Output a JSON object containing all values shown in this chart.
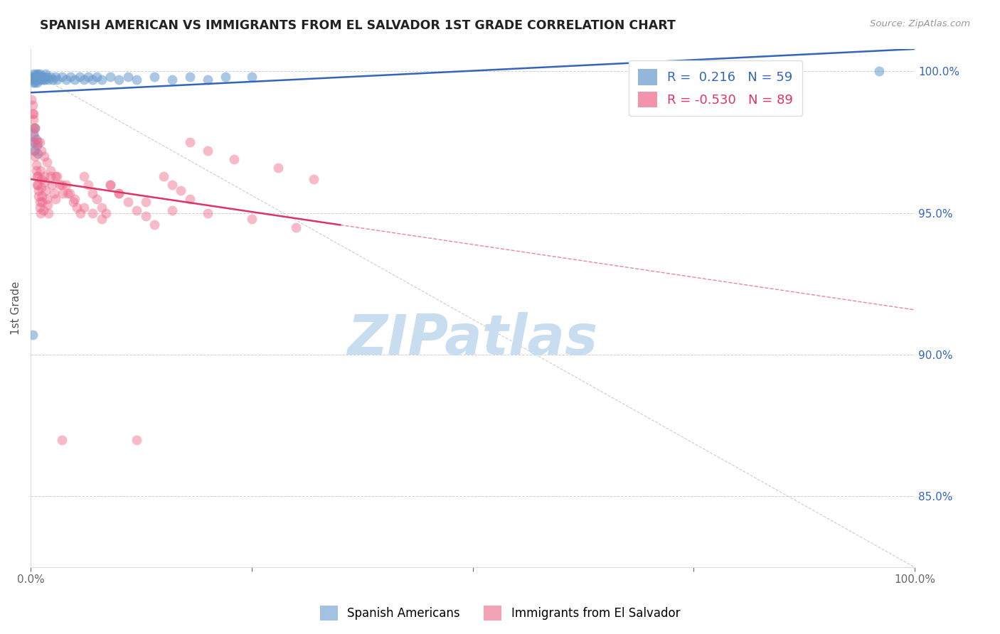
{
  "title": "SPANISH AMERICAN VS IMMIGRANTS FROM EL SALVADOR 1ST GRADE CORRELATION CHART",
  "source_text": "Source: ZipAtlas.com",
  "ylabel": "1st Grade",
  "xlim": [
    0.0,
    1.0
  ],
  "ylim": [
    0.825,
    1.008
  ],
  "yticks": [
    0.85,
    0.9,
    0.95,
    1.0
  ],
  "ytick_labels": [
    "85.0%",
    "90.0%",
    "95.0%",
    "100.0%"
  ],
  "xticks": [
    0.0,
    0.25,
    0.5,
    0.75,
    1.0
  ],
  "xtick_labels": [
    "0.0%",
    "",
    "",
    "",
    "100.0%"
  ],
  "legend_blue_r": "0.216",
  "legend_blue_n": "59",
  "legend_pink_r": "-0.530",
  "legend_pink_n": "89",
  "blue_color": "#6699cc",
  "pink_color": "#ee6688",
  "watermark": "ZIPatlas",
  "watermark_color": "#c8ddf0",
  "blue_line_color": "#3366bb",
  "pink_line_color": "#dd3366",
  "grid_color": "#bbbbbb",
  "blue_scatter_alpha": 0.55,
  "pink_scatter_alpha": 0.45,
  "scatter_size": 100,
  "blue_x": [
    0.001,
    0.002,
    0.003,
    0.003,
    0.004,
    0.004,
    0.005,
    0.005,
    0.006,
    0.006,
    0.007,
    0.007,
    0.008,
    0.008,
    0.009,
    0.01,
    0.01,
    0.011,
    0.012,
    0.013,
    0.014,
    0.015,
    0.016,
    0.017,
    0.018,
    0.02,
    0.022,
    0.025,
    0.028,
    0.03,
    0.035,
    0.04,
    0.045,
    0.05,
    0.055,
    0.06,
    0.065,
    0.07,
    0.075,
    0.08,
    0.09,
    0.1,
    0.11,
    0.12,
    0.14,
    0.16,
    0.18,
    0.2,
    0.22,
    0.25,
    0.002,
    0.003,
    0.004,
    0.005,
    0.006,
    0.007,
    0.008,
    0.96,
    0.002
  ],
  "blue_y": [
    0.998,
    0.997,
    0.996,
    0.999,
    0.997,
    0.998,
    0.996,
    0.998,
    0.997,
    0.999,
    0.998,
    0.996,
    0.997,
    0.999,
    0.998,
    0.997,
    0.999,
    0.998,
    0.997,
    0.998,
    0.997,
    0.998,
    0.997,
    0.999,
    0.998,
    0.997,
    0.998,
    0.997,
    0.998,
    0.997,
    0.998,
    0.997,
    0.998,
    0.997,
    0.998,
    0.997,
    0.998,
    0.997,
    0.998,
    0.997,
    0.998,
    0.997,
    0.998,
    0.997,
    0.998,
    0.997,
    0.998,
    0.997,
    0.998,
    0.998,
    0.975,
    0.978,
    0.972,
    0.98,
    0.976,
    0.974,
    0.971,
    1.0,
    0.907
  ],
  "pink_x": [
    0.001,
    0.002,
    0.002,
    0.003,
    0.003,
    0.004,
    0.004,
    0.005,
    0.005,
    0.006,
    0.006,
    0.007,
    0.007,
    0.008,
    0.008,
    0.009,
    0.009,
    0.01,
    0.01,
    0.011,
    0.011,
    0.012,
    0.012,
    0.013,
    0.013,
    0.014,
    0.015,
    0.016,
    0.017,
    0.018,
    0.019,
    0.02,
    0.022,
    0.024,
    0.026,
    0.028,
    0.03,
    0.033,
    0.036,
    0.04,
    0.044,
    0.048,
    0.052,
    0.056,
    0.06,
    0.065,
    0.07,
    0.075,
    0.08,
    0.085,
    0.09,
    0.1,
    0.11,
    0.12,
    0.13,
    0.14,
    0.15,
    0.16,
    0.17,
    0.18,
    0.01,
    0.012,
    0.015,
    0.018,
    0.022,
    0.028,
    0.035,
    0.042,
    0.05,
    0.06,
    0.07,
    0.08,
    0.09,
    0.1,
    0.13,
    0.16,
    0.2,
    0.25,
    0.3,
    0.18,
    0.2,
    0.23,
    0.28,
    0.32,
    0.003,
    0.005,
    0.008,
    0.035,
    0.12
  ],
  "pink_y": [
    0.99,
    0.988,
    0.985,
    0.983,
    0.98,
    0.977,
    0.975,
    0.972,
    0.97,
    0.967,
    0.965,
    0.963,
    0.96,
    0.963,
    0.96,
    0.958,
    0.956,
    0.954,
    0.952,
    0.95,
    0.965,
    0.962,
    0.959,
    0.956,
    0.954,
    0.951,
    0.963,
    0.961,
    0.958,
    0.955,
    0.953,
    0.95,
    0.963,
    0.96,
    0.957,
    0.955,
    0.963,
    0.96,
    0.957,
    0.96,
    0.957,
    0.954,
    0.952,
    0.95,
    0.963,
    0.96,
    0.957,
    0.955,
    0.952,
    0.95,
    0.96,
    0.957,
    0.954,
    0.951,
    0.949,
    0.946,
    0.963,
    0.96,
    0.958,
    0.955,
    0.975,
    0.972,
    0.97,
    0.968,
    0.965,
    0.963,
    0.96,
    0.957,
    0.955,
    0.952,
    0.95,
    0.948,
    0.96,
    0.957,
    0.954,
    0.951,
    0.95,
    0.948,
    0.945,
    0.975,
    0.972,
    0.969,
    0.966,
    0.962,
    0.985,
    0.98,
    0.975,
    0.87,
    0.87
  ]
}
